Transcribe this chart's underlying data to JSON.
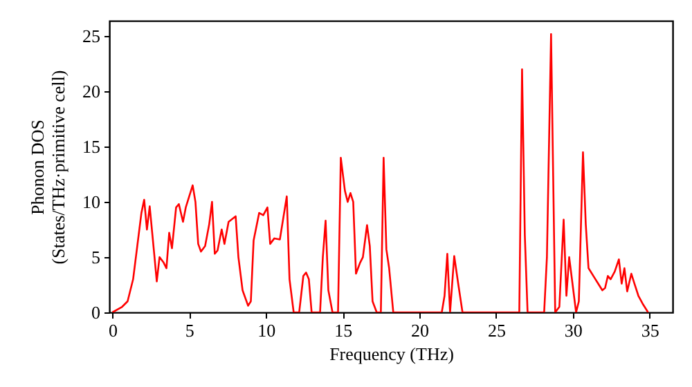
{
  "chart_data": {
    "type": "line",
    "xlabel": "Frequency (THz)",
    "ylabel": "Phonon DOS\n(States/THz·primitive cell)",
    "xlim": [
      -0.2,
      36.5
    ],
    "ylim": [
      0,
      26.4
    ],
    "xticks": [
      0,
      5,
      10,
      15,
      20,
      25,
      30,
      35
    ],
    "yticks": [
      0,
      5,
      10,
      15,
      20,
      25
    ],
    "grid": false,
    "marker": "none",
    "line_style": "solid",
    "series": [
      {
        "color": "#ff0000",
        "x": [
          0,
          0.63,
          0.99,
          1.35,
          1.62,
          1.89,
          2.07,
          2.25,
          2.43,
          2.71,
          2.89,
          3.07,
          3.34,
          3.52,
          3.7,
          3.88,
          4.15,
          4.33,
          4.6,
          4.78,
          5.23,
          5.41,
          5.59,
          5.77,
          6.04,
          6.31,
          6.49,
          6.67,
          6.85,
          7.12,
          7.3,
          7.57,
          8.03,
          8.21,
          8.48,
          8.84,
          9.02,
          9.2,
          9.56,
          9.83,
          10.1,
          10.28,
          10.55,
          10.91,
          11.36,
          11.54,
          11.81,
          12.17,
          12.44,
          12.62,
          12.8,
          12.98,
          13.53,
          13.71,
          13.89,
          14.07,
          14.34,
          14.7,
          14.88,
          15.15,
          15.33,
          15.51,
          15.69,
          15.87,
          16.14,
          16.32,
          16.59,
          16.77,
          16.95,
          17.22,
          17.49,
          17.67,
          17.85,
          18.03,
          18.3,
          21.46,
          21.64,
          21.82,
          22.0,
          22.27,
          22.54,
          22.81,
          26.51,
          26.69,
          26.87,
          27.05,
          28.13,
          28.31,
          28.58,
          28.85,
          29.12,
          29.4,
          29.58,
          29.76,
          30.03,
          30.21,
          30.39,
          30.66,
          30.84,
          31.02,
          31.38,
          31.56,
          31.92,
          32.1,
          32.28,
          32.46,
          32.73,
          33.0,
          33.18,
          33.36,
          33.54,
          33.81,
          33.99,
          34.27,
          34.54,
          34.9
        ],
        "values": [
          0,
          0.5,
          1,
          3,
          6,
          9,
          10.2,
          7.5,
          9.6,
          5.5,
          2.8,
          5,
          4.5,
          4,
          7.2,
          5.8,
          9.5,
          9.8,
          8.2,
          9.5,
          11.5,
          10,
          6.2,
          5.5,
          6,
          8,
          10,
          5.3,
          5.6,
          7.5,
          6.2,
          8.2,
          8.7,
          5,
          2,
          0.6,
          1,
          6.5,
          9,
          8.8,
          9.5,
          6.2,
          6.7,
          6.6,
          10.5,
          3,
          0,
          0,
          3.3,
          3.6,
          3,
          0,
          0,
          5,
          8.3,
          2,
          0,
          0,
          14,
          11,
          10,
          10.8,
          10,
          3.5,
          4.5,
          5,
          7.9,
          6,
          1,
          0,
          0,
          14,
          5.7,
          4,
          0,
          0,
          1.5,
          5.3,
          0,
          5.1,
          2.5,
          0,
          0,
          22,
          7,
          0,
          0,
          5,
          25.2,
          0,
          0.5,
          8.4,
          1.5,
          5,
          2,
          0,
          1,
          14.5,
          8,
          4,
          3.2,
          2.8,
          2,
          2.2,
          3.3,
          3,
          3.7,
          4.8,
          2.6,
          4,
          1.9,
          3.5,
          2.7,
          1.5,
          0.8,
          0
        ]
      }
    ]
  }
}
